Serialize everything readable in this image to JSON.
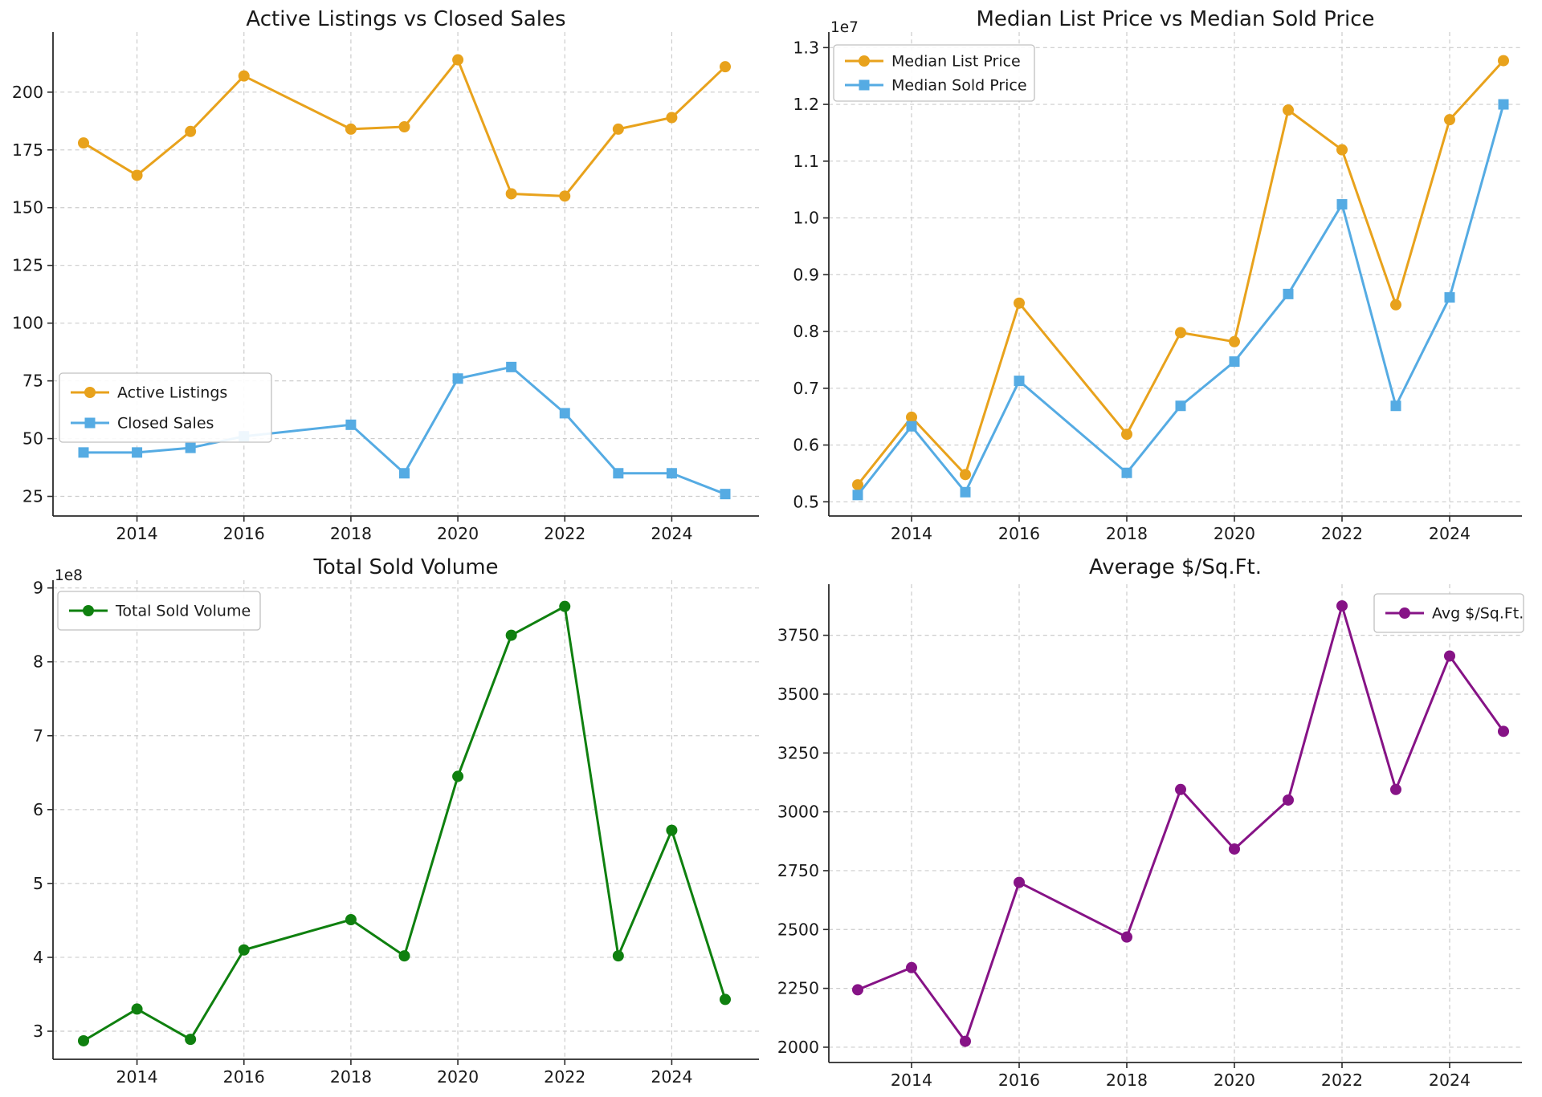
{
  "figure": {
    "background": "#ffffff",
    "grid_color": "#cccccc",
    "axis_color": "#2a2a2a"
  },
  "chart_data": [
    {
      "id": "active-vs-closed",
      "type": "line",
      "title": "Active Listings vs Closed Sales",
      "x": [
        2013,
        2014,
        2015,
        2016,
        2018,
        2019,
        2020,
        2021,
        2022,
        2023,
        2024,
        2025
      ],
      "x_ticks": [
        2014,
        2016,
        2018,
        2020,
        2022,
        2024
      ],
      "series": [
        {
          "name": "Active Listings",
          "color": "#e8a21c",
          "marker": "circle",
          "values": [
            178,
            164,
            183,
            207,
            184,
            185,
            214,
            156,
            155,
            184,
            189,
            211
          ]
        },
        {
          "name": "Closed Sales",
          "color": "#55abe3",
          "marker": "square",
          "values": [
            44,
            44,
            46,
            51,
            56,
            35,
            76,
            81,
            61,
            35,
            35,
            26
          ]
        }
      ],
      "ylim": [
        16.5,
        226
      ],
      "yticks": [
        25,
        50,
        75,
        100,
        125,
        150,
        175,
        200
      ],
      "ytick_div": 1,
      "ytick_decimals": 0,
      "offset_label": "",
      "legend_pos": "lower-left",
      "grid": true
    },
    {
      "id": "list-vs-sold-price",
      "type": "line",
      "title": "Median List Price vs Median Sold Price",
      "x": [
        2013,
        2014,
        2015,
        2016,
        2018,
        2019,
        2020,
        2021,
        2022,
        2023,
        2024,
        2025
      ],
      "x_ticks": [
        2014,
        2016,
        2018,
        2020,
        2022,
        2024
      ],
      "series": [
        {
          "name": "Median List Price",
          "color": "#e8a21c",
          "marker": "circle",
          "values": [
            5300000,
            6490000,
            5480000,
            8500000,
            6190000,
            7980000,
            7820000,
            11900000,
            11200000,
            8470000,
            11730000,
            12770000
          ]
        },
        {
          "name": "Median Sold Price",
          "color": "#55abe3",
          "marker": "square",
          "values": [
            5120000,
            6330000,
            5170000,
            7130000,
            5510000,
            6690000,
            7470000,
            8660000,
            10240000,
            6690000,
            8600000,
            12000000
          ]
        }
      ],
      "ylim": [
        4750000,
        13273000
      ],
      "yticks": [
        5000000,
        6000000,
        7000000,
        8000000,
        9000000,
        10000000,
        11000000,
        12000000,
        13000000
      ],
      "ytick_div": 10000000,
      "ytick_decimals": 1,
      "offset_label": "1e7",
      "legend_pos": "upper-left",
      "grid": true
    },
    {
      "id": "total-sold-volume",
      "type": "line",
      "title": "Total Sold Volume",
      "x": [
        2013,
        2014,
        2015,
        2016,
        2018,
        2019,
        2020,
        2021,
        2022,
        2023,
        2024,
        2025
      ],
      "x_ticks": [
        2014,
        2016,
        2018,
        2020,
        2022,
        2024
      ],
      "series": [
        {
          "name": "Total Sold Volume",
          "color": "#0f800f",
          "marker": "circle",
          "values": [
            287000000,
            330000000,
            289000000,
            410000000,
            451000000,
            402000000,
            645000000,
            836000000,
            875000000,
            402000000,
            572000000,
            343000000
          ]
        }
      ],
      "ylim": [
        262000000,
        910500000
      ],
      "yticks": [
        300000000,
        400000000,
        500000000,
        600000000,
        700000000,
        800000000,
        900000000
      ],
      "ytick_div": 100000000,
      "ytick_decimals": 0,
      "offset_label": "1e8",
      "legend_pos": "upper-left",
      "grid": true
    },
    {
      "id": "avg-price-per-sqft",
      "type": "line",
      "title": "Average $/Sq.Ft.",
      "x": [
        2013,
        2014,
        2015,
        2016,
        2018,
        2019,
        2020,
        2021,
        2022,
        2023,
        2024,
        2025
      ],
      "x_ticks": [
        2014,
        2016,
        2018,
        2020,
        2022,
        2024
      ],
      "series": [
        {
          "name": "Avg $/Sq.Ft.",
          "color": "#861386",
          "marker": "circle",
          "values": [
            2244,
            2338,
            2025,
            2700,
            2468,
            3095,
            2842,
            3050,
            3875,
            3095,
            3662,
            3342
          ]
        }
      ],
      "ylim": [
        1935,
        3967
      ],
      "yticks": [
        2000,
        2250,
        2500,
        2750,
        3000,
        3250,
        3500,
        3750
      ],
      "ytick_div": 1,
      "ytick_decimals": 0,
      "offset_label": "",
      "legend_pos": "upper-right",
      "grid": true
    }
  ]
}
